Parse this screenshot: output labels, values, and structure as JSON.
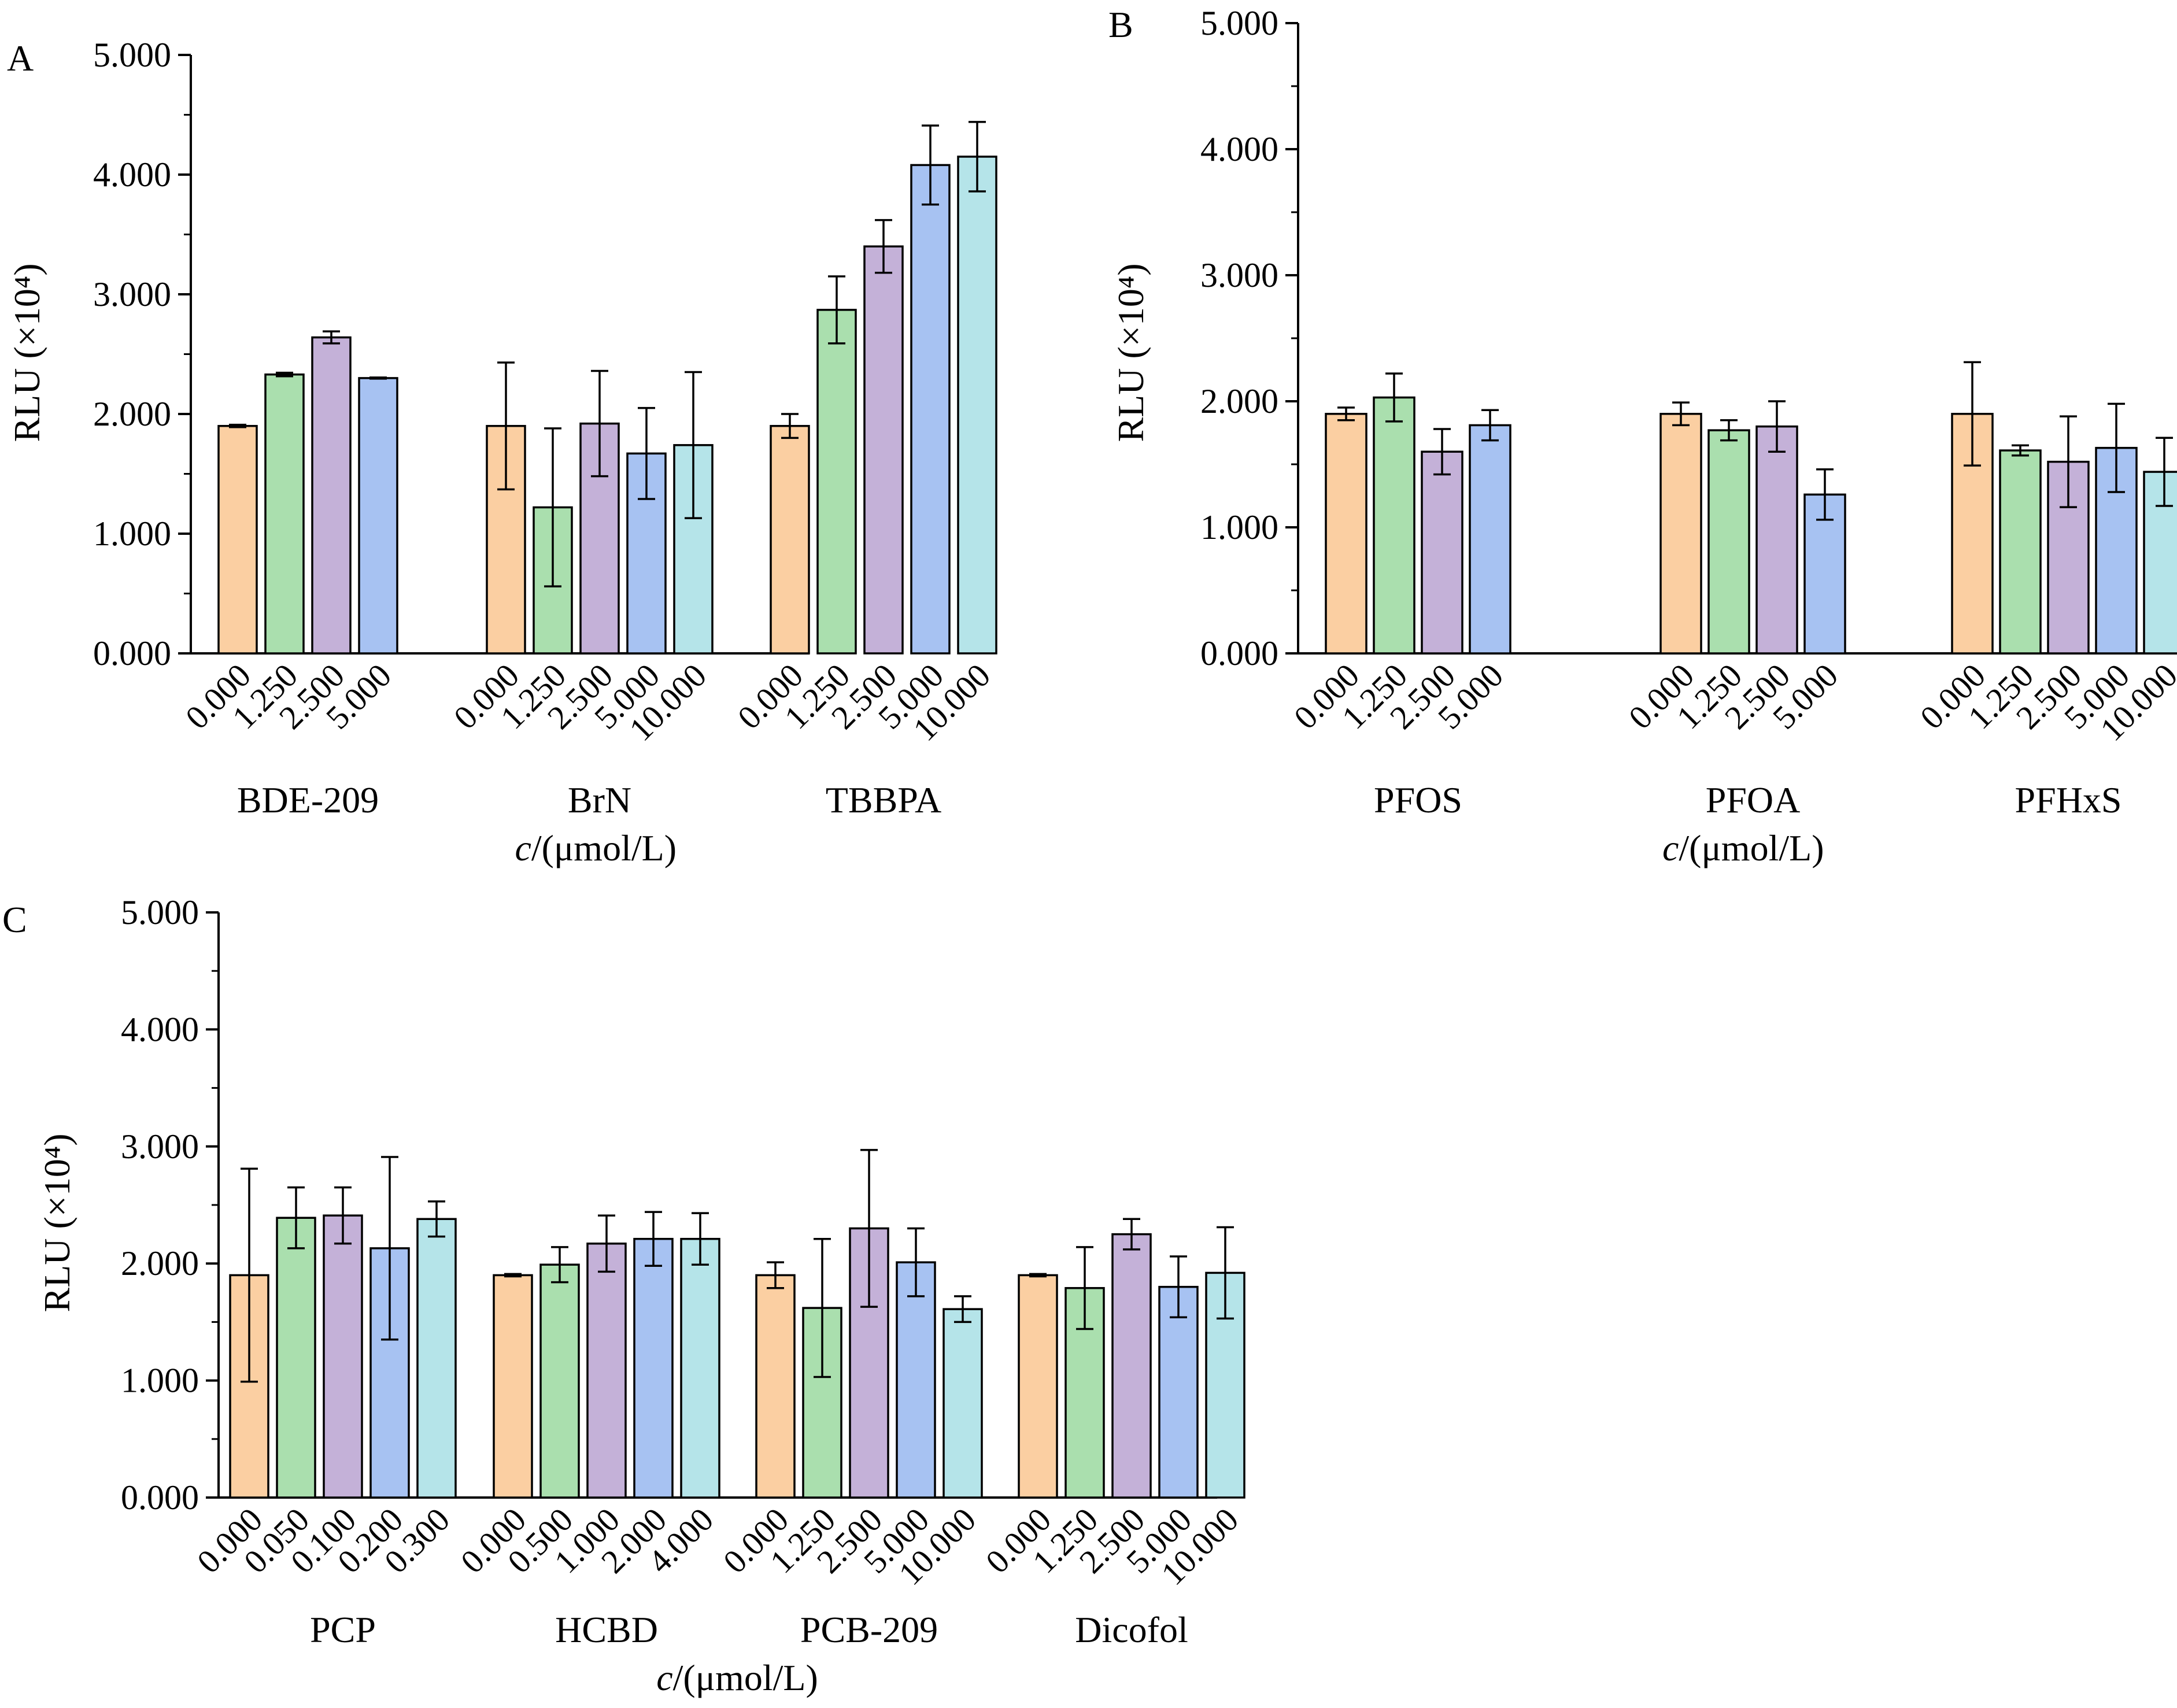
{
  "colors": {
    "conc_1": "#fbcfa2",
    "conc_2": "#aadfae",
    "conc_3": "#c4b1d8",
    "conc_4": "#a7c2f2",
    "conc_5": "#b5e4e9",
    "axis": "#000000"
  },
  "chart_data": [
    {
      "type": "bar",
      "panel": "A",
      "ylabel": "RLU (×10⁴)",
      "xlabel": "c/(μmol/L)",
      "ylim": [
        0,
        5
      ],
      "yticks": [
        "0.000",
        "1.000",
        "2.000",
        "3.000",
        "4.000",
        "5.000"
      ],
      "groups": [
        {
          "name": "BDE-209",
          "bars": [
            {
              "conc": "0.000",
              "value": 1.9,
              "err": 0.01
            },
            {
              "conc": "1.250",
              "value": 2.33,
              "err": 0.015
            },
            {
              "conc": "2.500",
              "value": 2.64,
              "err": 0.05
            },
            {
              "conc": "5.000",
              "value": 2.3,
              "err": 0.005
            }
          ]
        },
        {
          "name": "BrN",
          "bars": [
            {
              "conc": "0.000",
              "value": 1.9,
              "err": 0.53
            },
            {
              "conc": "1.250",
              "value": 1.22,
              "err": 0.66
            },
            {
              "conc": "2.500",
              "value": 1.92,
              "err": 0.44
            },
            {
              "conc": "5.000",
              "value": 1.67,
              "err": 0.38
            },
            {
              "conc": "10.000",
              "value": 1.74,
              "err": 0.61
            }
          ]
        },
        {
          "name": "TBBPA",
          "bars": [
            {
              "conc": "0.000",
              "value": 1.9,
              "err": 0.1
            },
            {
              "conc": "1.250",
              "value": 2.87,
              "err": 0.28
            },
            {
              "conc": "2.500",
              "value": 3.4,
              "err": 0.22
            },
            {
              "conc": "5.000",
              "value": 4.08,
              "err": 0.33
            },
            {
              "conc": "10.000",
              "value": 4.15,
              "err": 0.29
            }
          ]
        }
      ]
    },
    {
      "type": "bar",
      "panel": "B",
      "ylabel": "RLU (×10⁴)",
      "xlabel": "c/(μmol/L)",
      "ylim": [
        0,
        5
      ],
      "yticks": [
        "0.000",
        "1.000",
        "2.000",
        "3.000",
        "4.000",
        "5.000"
      ],
      "groups": [
        {
          "name": "PFOS",
          "bars": [
            {
              "conc": "0.000",
              "value": 1.9,
              "err": 0.05
            },
            {
              "conc": "1.250",
              "value": 2.03,
              "err": 0.19
            },
            {
              "conc": "2.500",
              "value": 1.6,
              "err": 0.18
            },
            {
              "conc": "5.000",
              "value": 1.81,
              "err": 0.12
            }
          ]
        },
        {
          "name": "PFOA",
          "bars": [
            {
              "conc": "0.000",
              "value": 1.9,
              "err": 0.09
            },
            {
              "conc": "1.250",
              "value": 1.77,
              "err": 0.08
            },
            {
              "conc": "2.500",
              "value": 1.8,
              "err": 0.2
            },
            {
              "conc": "5.000",
              "value": 1.26,
              "err": 0.2
            }
          ]
        },
        {
          "name": "PFHxS",
          "bars": [
            {
              "conc": "0.000",
              "value": 1.9,
              "err": 0.41
            },
            {
              "conc": "1.250",
              "value": 1.61,
              "err": 0.04
            },
            {
              "conc": "2.500",
              "value": 1.52,
              "err": 0.36
            },
            {
              "conc": "5.000",
              "value": 1.63,
              "err": 0.35
            },
            {
              "conc": "10.000",
              "value": 1.44,
              "err": 0.27
            }
          ]
        }
      ]
    },
    {
      "type": "bar",
      "panel": "C",
      "ylabel": "RLU (×10⁴)",
      "xlabel": "c/(μmol/L)",
      "ylim": [
        0,
        5
      ],
      "yticks": [
        "0.000",
        "1.000",
        "2.000",
        "3.000",
        "4.000",
        "5.000"
      ],
      "groups": [
        {
          "name": "PCP",
          "bars": [
            {
              "conc": "0.000",
              "value": 1.9,
              "err": 0.91
            },
            {
              "conc": "0.050",
              "value": 2.39,
              "err": 0.26
            },
            {
              "conc": "0.100",
              "value": 2.41,
              "err": 0.24
            },
            {
              "conc": "0.200",
              "value": 2.13,
              "err": 0.78
            },
            {
              "conc": "0.300",
              "value": 2.38,
              "err": 0.15
            }
          ]
        },
        {
          "name": "HCBD",
          "bars": [
            {
              "conc": "0.000",
              "value": 1.9,
              "err": 0.01
            },
            {
              "conc": "0.500",
              "value": 1.99,
              "err": 0.15
            },
            {
              "conc": "1.000",
              "value": 2.17,
              "err": 0.24
            },
            {
              "conc": "2.000",
              "value": 2.21,
              "err": 0.23
            },
            {
              "conc": "4.000",
              "value": 2.21,
              "err": 0.22
            }
          ]
        },
        {
          "name": "PCB-209",
          "bars": [
            {
              "conc": "0.000",
              "value": 1.9,
              "err": 0.11
            },
            {
              "conc": "1.250",
              "value": 1.62,
              "err": 0.59
            },
            {
              "conc": "2.500",
              "value": 2.3,
              "err": 0.67
            },
            {
              "conc": "5.000",
              "value": 2.01,
              "err": 0.29
            },
            {
              "conc": "10.000",
              "value": 1.61,
              "err": 0.11
            }
          ]
        },
        {
          "name": "Dicofol",
          "bars": [
            {
              "conc": "0.000",
              "value": 1.9,
              "err": 0.01
            },
            {
              "conc": "1.250",
              "value": 1.79,
              "err": 0.35
            },
            {
              "conc": "2.500",
              "value": 2.25,
              "err": 0.13
            },
            {
              "conc": "5.000",
              "value": 1.8,
              "err": 0.26
            },
            {
              "conc": "10.000",
              "value": 1.92,
              "err": 0.39
            }
          ]
        }
      ]
    }
  ]
}
